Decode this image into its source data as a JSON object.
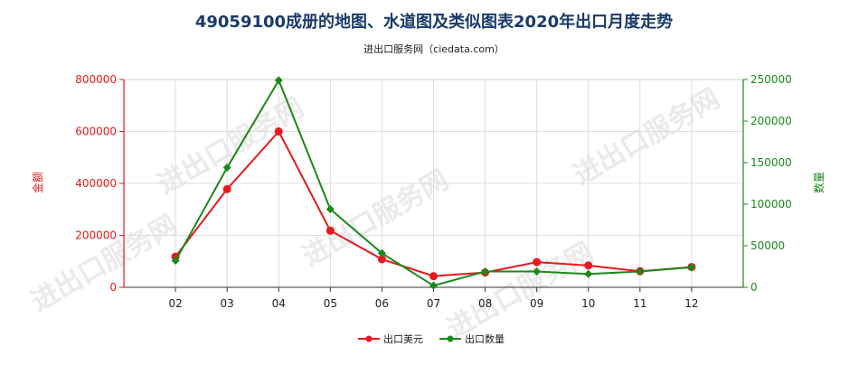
{
  "title": "49059100成册的地图、水道图及类似图表2020年出口月度走势",
  "subtitle": "进出口服务网（ciedata.com）",
  "watermark": "进出口服务网",
  "colors": {
    "left": "#e8191c",
    "right": "#1a8a1a",
    "title": "#1a3a6b"
  },
  "chart_data": {
    "type": "line",
    "x": [
      "02",
      "03",
      "04",
      "05",
      "06",
      "07",
      "08",
      "09",
      "10",
      "11",
      "12"
    ],
    "ylabel_left": "金额",
    "ylabel_right": "数量",
    "ylim_left": [
      0,
      800000
    ],
    "ylim_right": [
      0,
      250000
    ],
    "yticks_left": [
      "0",
      "200000",
      "400000",
      "600000",
      "800000"
    ],
    "yticks_right": [
      "0",
      "50000",
      "100000",
      "150000",
      "200000",
      "250000"
    ],
    "grid": true,
    "legend_position": "bottom-center",
    "series": [
      {
        "name": "出口美元",
        "axis": "left",
        "color": "#e8191c",
        "values": [
          118000,
          378000,
          600000,
          218000,
          108000,
          43000,
          57000,
          97000,
          84000,
          62000,
          78000
        ]
      },
      {
        "name": "出口数量",
        "axis": "right",
        "color": "#1a8a1a",
        "values": [
          32000,
          144000,
          249000,
          94000,
          41000,
          2000,
          19000,
          19000,
          16000,
          19000,
          24000
        ]
      }
    ]
  }
}
